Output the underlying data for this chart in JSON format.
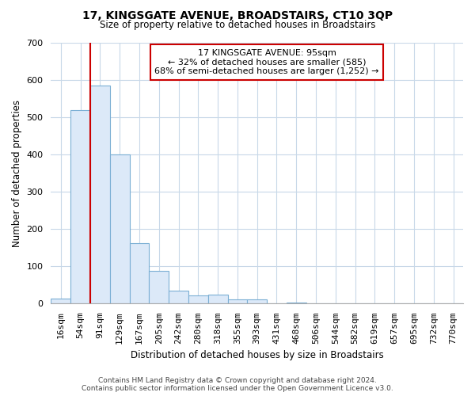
{
  "title": "17, KINGSGATE AVENUE, BROADSTAIRS, CT10 3QP",
  "subtitle": "Size of property relative to detached houses in Broadstairs",
  "xlabel": "Distribution of detached houses by size in Broadstairs",
  "ylabel": "Number of detached properties",
  "bar_labels": [
    "16sqm",
    "54sqm",
    "91sqm",
    "129sqm",
    "167sqm",
    "205sqm",
    "242sqm",
    "280sqm",
    "318sqm",
    "355sqm",
    "393sqm",
    "431sqm",
    "468sqm",
    "506sqm",
    "544sqm",
    "582sqm",
    "619sqm",
    "657sqm",
    "695sqm",
    "732sqm",
    "770sqm"
  ],
  "bar_values": [
    13,
    520,
    585,
    400,
    163,
    88,
    35,
    23,
    24,
    12,
    12,
    0,
    3,
    0,
    0,
    0,
    0,
    0,
    0,
    0,
    0
  ],
  "bar_fill_color": "#dce9f8",
  "bar_edge_color": "#7bafd4",
  "highlight_line_color": "#cc0000",
  "ylim": [
    0,
    700
  ],
  "yticks": [
    0,
    100,
    200,
    300,
    400,
    500,
    600,
    700
  ],
  "annotation_title": "17 KINGSGATE AVENUE: 95sqm",
  "annotation_line1": "← 32% of detached houses are smaller (585)",
  "annotation_line2": "68% of semi-detached houses are larger (1,252) →",
  "footer1": "Contains HM Land Registry data © Crown copyright and database right 2024.",
  "footer2": "Contains public sector information licensed under the Open Government Licence v3.0.",
  "background_color": "#ffffff",
  "grid_color": "#c8d8e8",
  "title_fontsize": 10,
  "subtitle_fontsize": 8.5,
  "ylabel_fontsize": 8.5,
  "xlabel_fontsize": 8.5,
  "tick_fontsize": 8,
  "annotation_fontsize": 8,
  "footer_fontsize": 6.5
}
